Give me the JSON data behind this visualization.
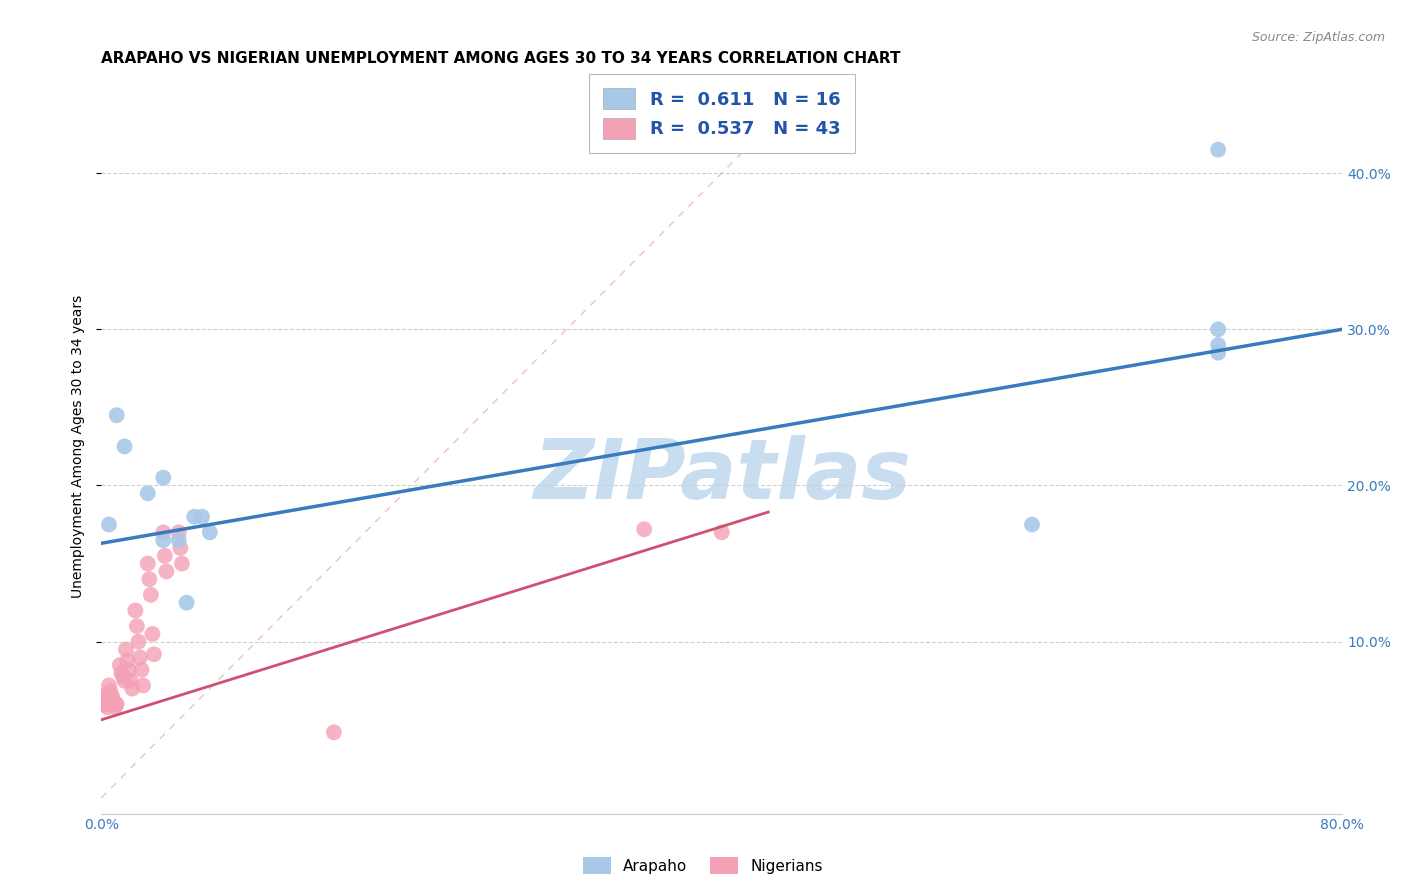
{
  "title": "ARAPAHO VS NIGERIAN UNEMPLOYMENT AMONG AGES 30 TO 34 YEARS CORRELATION CHART",
  "source": "Source: ZipAtlas.com",
  "ylabel": "Unemployment Among Ages 30 to 34 years",
  "xlim": [
    0,
    0.8
  ],
  "ylim": [
    -0.01,
    0.46
  ],
  "xticks": [
    0.0,
    0.1,
    0.2,
    0.3,
    0.4,
    0.5,
    0.6,
    0.7,
    0.8
  ],
  "ytick_labels_right": [
    "10.0%",
    "20.0%",
    "30.0%",
    "40.0%"
  ],
  "ytick_vals_right": [
    0.1,
    0.2,
    0.3,
    0.4
  ],
  "arapaho_color": "#a8c8e8",
  "nigerian_color": "#f4a0b5",
  "arapaho_edge_color": "#6aaad4",
  "nigerian_edge_color": "#e87090",
  "arapaho_R": "0.611",
  "arapaho_N": "16",
  "nigerian_R": "0.537",
  "nigerian_N": "43",
  "watermark": "ZIPatlas",
  "arapaho_x": [
    0.005,
    0.01,
    0.015,
    0.03,
    0.04,
    0.04,
    0.05,
    0.055,
    0.06,
    0.065,
    0.07,
    0.6,
    0.72,
    0.72,
    0.72,
    0.72
  ],
  "arapaho_y": [
    0.175,
    0.245,
    0.225,
    0.195,
    0.205,
    0.165,
    0.165,
    0.125,
    0.18,
    0.18,
    0.17,
    0.175,
    0.285,
    0.415,
    0.3,
    0.29
  ],
  "nigerian_x": [
    0.001,
    0.001,
    0.002,
    0.002,
    0.003,
    0.003,
    0.004,
    0.005,
    0.006,
    0.007,
    0.008,
    0.009,
    0.009,
    0.01,
    0.012,
    0.013,
    0.014,
    0.015,
    0.016,
    0.017,
    0.018,
    0.019,
    0.02,
    0.022,
    0.023,
    0.024,
    0.025,
    0.026,
    0.027,
    0.03,
    0.031,
    0.032,
    0.033,
    0.034,
    0.04,
    0.041,
    0.042,
    0.05,
    0.051,
    0.052,
    0.15,
    0.35,
    0.4
  ],
  "nigerian_y": [
    0.065,
    0.06,
    0.065,
    0.06,
    0.065,
    0.06,
    0.058,
    0.072,
    0.068,
    0.065,
    0.062,
    0.06,
    0.058,
    0.06,
    0.085,
    0.08,
    0.078,
    0.075,
    0.095,
    0.088,
    0.082,
    0.075,
    0.07,
    0.12,
    0.11,
    0.1,
    0.09,
    0.082,
    0.072,
    0.15,
    0.14,
    0.13,
    0.105,
    0.092,
    0.17,
    0.155,
    0.145,
    0.17,
    0.16,
    0.15,
    0.042,
    0.172,
    0.17
  ],
  "blue_line_x": [
    0.0,
    0.8
  ],
  "blue_line_y": [
    0.163,
    0.3
  ],
  "pink_line_x": [
    0.0,
    0.43
  ],
  "pink_line_y": [
    0.05,
    0.183
  ],
  "ref_line_x": [
    0.0,
    0.46
  ],
  "ref_line_y": [
    0.0,
    0.46
  ],
  "background_color": "#ffffff",
  "grid_color": "#d0d0d0",
  "title_fontsize": 11,
  "label_fontsize": 10,
  "tick_fontsize": 10,
  "watermark_color": "#c8ddf0",
  "watermark_fontsize": 60,
  "scatter_size": 130
}
